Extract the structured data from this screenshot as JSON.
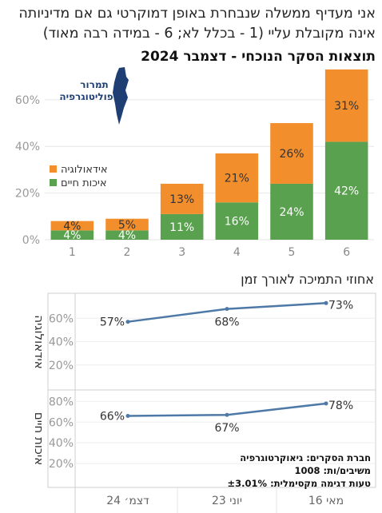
{
  "header": {
    "line1": "אני מעדיף ממשלה שנבחרת באופן דמוקרטי גם אם מדיניותה",
    "line2": "אינה מקובלת עליי (1 - בכלל לא; 6 - במידה רבה מאוד)",
    "line3": "תוצאות הסקר הנוכחי - דצמבר 2024"
  },
  "logo": {
    "line1": "תמרור",
    "line2": "פוליטוגרפיה"
  },
  "colors": {
    "ideology": "#f28e2b",
    "life": "#59a14f",
    "line": "#4e79a7"
  },
  "chart_data": [
    {
      "type": "bar",
      "stacked": true,
      "categories": [
        "1",
        "2",
        "3",
        "4",
        "5",
        "6"
      ],
      "series": [
        {
          "name": "איכות חיים",
          "values": [
            4,
            4,
            11,
            16,
            24,
            42
          ]
        },
        {
          "name": "אידאולוגיה",
          "values": [
            4,
            5,
            13,
            21,
            26,
            31
          ]
        }
      ],
      "value_labels": [
        [
          "4%",
          "4%",
          "11%",
          "16%",
          "24%",
          "42%"
        ],
        [
          "4%",
          "5%",
          "13%",
          "21%",
          "26%",
          "31%"
        ]
      ],
      "y_ticks": [
        "0%",
        "20%",
        "40%",
        "60%"
      ],
      "ylim": [
        0,
        74
      ],
      "legend_position": "left"
    },
    {
      "type": "line",
      "title": "אחוזי התמיכה לאורך זמן",
      "x": [
        "מאי 16",
        "יוני 23",
        "דצמ׳ 24"
      ],
      "panels": [
        {
          "name": "אידאולוגיה",
          "values": [
            73,
            68,
            57
          ],
          "labels": [
            "73%",
            "68%",
            "57%"
          ],
          "y_ticks": [
            "20%",
            "40%",
            "60%"
          ],
          "ylim": [
            0,
            78
          ]
        },
        {
          "name": "איכות חיים",
          "values": [
            78,
            67,
            66
          ],
          "labels": [
            "78%",
            "67%",
            "66%"
          ],
          "y_ticks": [
            "20%",
            "40%",
            "60%",
            "80%"
          ],
          "ylim": [
            0,
            88
          ]
        }
      ]
    }
  ],
  "survey_info": {
    "company": "חברת הסקרים: גיאוקרטוגרפיה",
    "respondents": "משיבים/ות: 1008",
    "error": "טעות דגימה מקסימלית: ±3.01%"
  }
}
